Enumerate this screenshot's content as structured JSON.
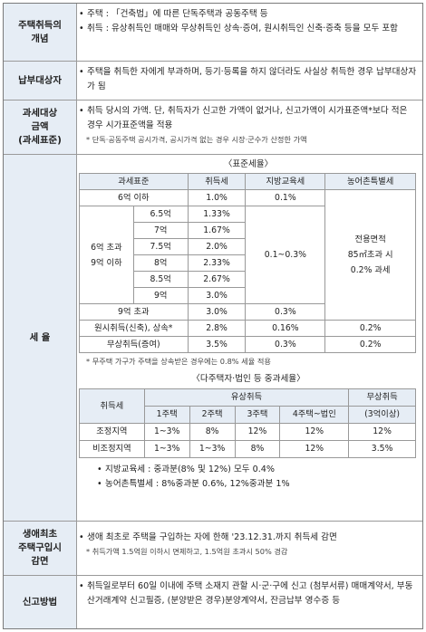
{
  "rows": [
    {
      "label": "주택취득의\n개념",
      "bullets": [
        "주택 : 「건축법」에 따른 단독주택과 공동주택 등",
        "취득 : 유상취득인 매매와 무상취득인 상속·증여, 원시취득인 신축·증축 등을 모두 포함"
      ]
    },
    {
      "label": "납부대상자",
      "bullets": [
        "주택을 취득한 자에게 부과하며, 등기·등록을 하지 않더라도 사실상 취득한 경우 납부대상자가 됨"
      ]
    },
    {
      "label": "과세대상\n금액\n(과세표준)",
      "bullets": [
        "취득 당시의 가액. 단, 취득자가 신고한 가액이 없거나, 신고가액이 시가표준액*보다 적은 경우 시가표준액을 적용"
      ],
      "note": "* 단독·공동주택 공시가격, 공시가격 없는 경우 시장·군수가 산정한 가액"
    },
    {
      "label": "세 율"
    },
    {
      "label": "생애최초\n주택구입시\n감면",
      "bullets": [
        "생애 최초로 주택을 구입하는 자에 한해 '23.12.31.까지 취득세 감면"
      ],
      "note": "* 취득가액 1.5억원 이하시 면제하고, 1.5억원 초과시 50% 경감"
    },
    {
      "label": "신고방법",
      "bullets": [
        "취득일로부터 60일 이내에 주택 소재지 관할 시·군·구에 신고 (첨부서류) 매매계약서, 부동산거래계약 신고필증, (분양받은 경우)분양계약서, 잔금납부 영수증 등"
      ]
    }
  ],
  "standard_rate": {
    "caption": "〈표준세율〉",
    "headers": [
      "과세표준",
      "취득세",
      "지방교육세",
      "농어촌특별세"
    ],
    "r6_label": "6억 이하",
    "r6_tax": "1.0%",
    "r6_edu": "0.1%",
    "mid_label": "6억 초과\n9억 이하",
    "mid_rows": [
      [
        "6.5억",
        "1.33%"
      ],
      [
        "7억",
        "1.67%"
      ],
      [
        "7.5억",
        "2.0%"
      ],
      [
        "8억",
        "2.33%"
      ],
      [
        "8.5억",
        "2.67%"
      ],
      [
        "9억",
        "3.0%"
      ]
    ],
    "mid_edu": "0.1~0.3%",
    "rural_note": "전용면적\n85㎡초과 시\n0.2% 과세",
    "r9_label": "9억 초과",
    "r9_tax": "3.0%",
    "r9_edu": "0.3%",
    "orig_label": "원시취득(신축), 상속*",
    "orig_tax": "2.8%",
    "orig_edu": "0.16%",
    "orig_rural": "0.2%",
    "gift_label": "무상취득(증여)",
    "gift_tax": "3.5%",
    "gift_edu": "0.3%",
    "gift_rural": "0.2%",
    "note": "* 무주택 가구가 주택을 상속받은 경우에는 0.8% 세율 적용"
  },
  "heavy_rate": {
    "caption": "〈다주택자·법인 등 중과세율〉",
    "h_tax": "취득세",
    "h_paid": "유상취득",
    "h_free": "무상취득",
    "subheads": [
      "1주택",
      "2주택",
      "3주택",
      "4주택~법인",
      "(3억이상)"
    ],
    "rows": [
      {
        "label": "조정지역",
        "vals": [
          "1~3%",
          "8%",
          "12%",
          "12%",
          "12%"
        ]
      },
      {
        "label": "비조정지역",
        "vals": [
          "1~3%",
          "1~3%",
          "8%",
          "12%",
          "3.5%"
        ]
      }
    ],
    "bullets": [
      "지방교육세 : 중과분(8% 및 12%) 모두 0.4%",
      "농어촌특별세 : 8%중과분 0.6%, 12%중과분 1%"
    ]
  }
}
